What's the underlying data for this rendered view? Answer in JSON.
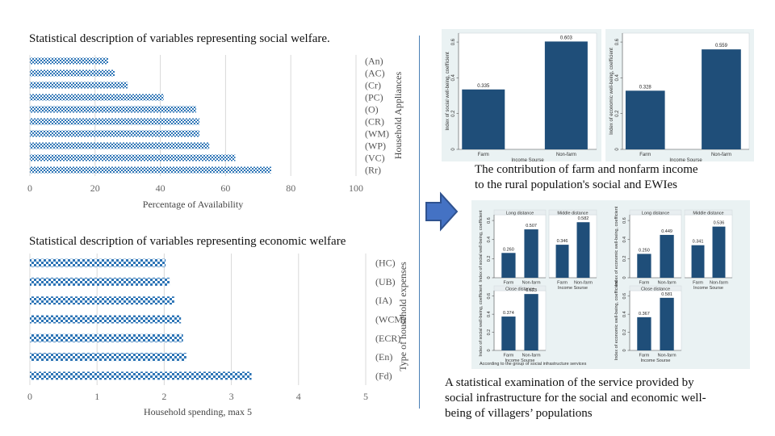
{
  "left_top_title": "Statistical description of variables representing social welfare.",
  "left_bottom_title": "Statistical description of variables representing economic welfare",
  "caption_top_line1": "The contribution of farm and nonfarm income",
  "caption_top_line2": "to the rural population's social and EWIes",
  "caption_bottom_line1": "A statistical examination of the service provided by",
  "caption_bottom_line2": "social infrastructure for the social and economic well-",
  "caption_bottom_line3": "being of villagers’ populations",
  "colors": {
    "bar": "#1f4e79",
    "pattern": "#2e75b6",
    "arrow": "#4472c4",
    "panel_bg": "#eaf2f3"
  },
  "chart_data": [
    {
      "id": "appliances",
      "type": "bar",
      "orientation": "horizontal",
      "categories": [
        "(An)",
        "(AC)",
        "(Cr)",
        "(PC)",
        "(O)",
        "(CR)",
        "(WM)",
        "(WP)",
        "(VC)",
        "(Rr)"
      ],
      "values": [
        24,
        26,
        30,
        41,
        51,
        52,
        52,
        55,
        63,
        74
      ],
      "xlabel": "Percentage of Availability",
      "ylabel": "Household Appliances",
      "xlim": [
        0,
        100
      ],
      "xticks": [
        "0",
        "20",
        "40",
        "60",
        "80",
        "100"
      ]
    },
    {
      "id": "expenses",
      "type": "bar",
      "orientation": "horizontal",
      "categories": [
        "(HC)",
        "(UB)",
        "(IA)",
        "(WCM)",
        "(ECR)",
        "(En)",
        "(Fd)"
      ],
      "values": [
        2.02,
        2.08,
        2.15,
        2.25,
        2.28,
        2.33,
        3.3
      ],
      "xlabel": "Household spending, max 5",
      "ylabel": "Type of household expenses",
      "xlim": [
        0,
        5
      ],
      "xticks": [
        "0",
        "1",
        "2",
        "3",
        "4",
        "5"
      ]
    },
    {
      "id": "social_income",
      "type": "bar",
      "categories": [
        "Farm",
        "Non-farm"
      ],
      "values": [
        0.335,
        0.603
      ],
      "value_labels": [
        "0.335",
        "0.603"
      ],
      "xlabel": "Income Sourse",
      "ylabel": "Index of social well-being, coefficient",
      "ylim": [
        0,
        0.65
      ],
      "yticks": [
        "0",
        "0.2",
        "0.4",
        "0.6"
      ]
    },
    {
      "id": "economic_income",
      "type": "bar",
      "categories": [
        "Farm",
        "Non-farm"
      ],
      "values": [
        0.328,
        0.559
      ],
      "value_labels": [
        "0.328",
        "0.559"
      ],
      "xlabel": "Income Sourse",
      "ylabel": "Index of economic well-being, coefficient",
      "ylim": [
        0,
        0.65
      ],
      "yticks": [
        "0",
        "0.2",
        "0.4",
        "0.6"
      ]
    }
  ],
  "distance_panel": {
    "footnote": "According to the group of social infrastructure services",
    "xlabel": "Income Sourse",
    "categories": [
      "Farm",
      "Non-farm"
    ],
    "yticks": [
      "0",
      "0.2",
      "0.4",
      "0.6"
    ],
    "groups": [
      {
        "ylabel": "Index of social well-being, coefficient",
        "subplots": [
          {
            "title": "Long distance",
            "values": [
              0.26,
              0.507
            ],
            "labels": [
              "0.260",
              "0.507"
            ]
          },
          {
            "title": "Middle distance",
            "values": [
              0.346,
              0.582
            ],
            "labels": [
              "0.346",
              "0.582"
            ]
          },
          {
            "title": "Close distance",
            "values": [
              0.374,
              0.623
            ],
            "labels": [
              "0.374",
              "0.623"
            ]
          }
        ]
      },
      {
        "ylabel": "Index of economic well-being, coefficient",
        "subplots": [
          {
            "title": "Long distance",
            "values": [
              0.25,
              0.449
            ],
            "labels": [
              "0.250",
              "0.449"
            ]
          },
          {
            "title": "Middle distance",
            "values": [
              0.341,
              0.536
            ],
            "labels": [
              "0.341",
              "0.536"
            ]
          },
          {
            "title": "Close distance",
            "values": [
              0.367,
              0.581
            ],
            "labels": [
              "0.367",
              "0.581"
            ]
          }
        ]
      }
    ]
  }
}
